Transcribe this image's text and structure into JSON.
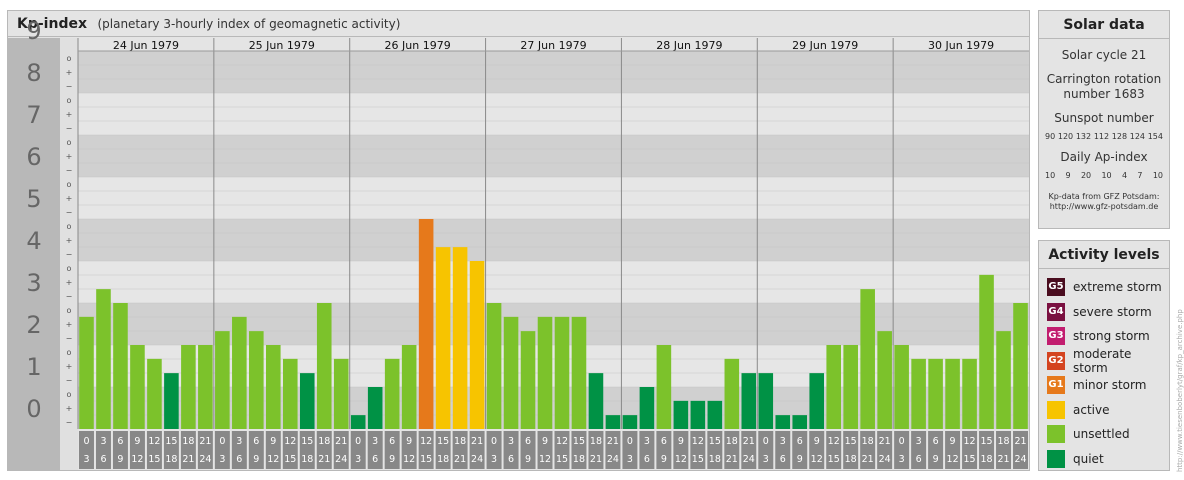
{
  "chart_header": {
    "title": "Kp-index",
    "subtitle": "(planetary 3-hourly index of geomagnetic activity)"
  },
  "chart_data": {
    "type": "bar",
    "title": "Kp-index",
    "subtitle": "(planetary 3-hourly index of geomagnetic activity)",
    "ylim": [
      0,
      9
    ],
    "y_ticks": [
      "0",
      "1",
      "2",
      "3",
      "4",
      "5",
      "6",
      "7",
      "8",
      "9"
    ],
    "minor_marks": [
      "o",
      "+",
      "−"
    ],
    "days": [
      "24 Jun 1979",
      "25 Jun 1979",
      "26 Jun 1979",
      "27 Jun 1979",
      "28 Jun 1979",
      "29 Jun 1979",
      "30 Jun 1979"
    ],
    "interval_labels": [
      [
        "0",
        "3"
      ],
      [
        "3",
        "6"
      ],
      [
        "6",
        "9"
      ],
      [
        "9",
        "12"
      ],
      [
        "12",
        "15"
      ],
      [
        "15",
        "18"
      ],
      [
        "18",
        "21"
      ],
      [
        "21",
        "24"
      ]
    ],
    "values": [
      2.67,
      3.33,
      3.0,
      2.0,
      1.67,
      1.33,
      2.0,
      2.0,
      2.33,
      2.67,
      2.33,
      2.0,
      1.67,
      1.33,
      3.0,
      1.67,
      0.33,
      1.0,
      1.67,
      2.0,
      5.0,
      4.33,
      4.33,
      4.0,
      3.0,
      2.67,
      2.33,
      2.67,
      2.67,
      2.67,
      1.33,
      0.33,
      0.33,
      1.0,
      2.0,
      0.67,
      0.67,
      0.67,
      1.67,
      1.33,
      1.33,
      0.33,
      0.33,
      1.33,
      2.0,
      2.0,
      3.33,
      2.33,
      2.0,
      1.67,
      1.67,
      1.67,
      1.67,
      3.67,
      2.33,
      3.0
    ],
    "grid": true,
    "colors": {
      "quiet": "#009245",
      "unsettled": "#7cc22b",
      "active": "#f7c400",
      "minor_storm": "#e6791b",
      "moderate_storm": "#d44420",
      "strong_storm": "#c21d6f",
      "severe_storm": "#7a1040",
      "extreme_storm": "#4a0d1f",
      "band_dark": "#d0d0d0",
      "band_light": "#e6e6e6",
      "axis_bg": "#b8b8b8",
      "axis_text": "#666666",
      "interval_bg": "#888888"
    }
  },
  "solar_data": {
    "title": "Solar data",
    "cycle": "Solar cycle 21",
    "carrington_line1": "Carrington rotation",
    "carrington_line2": "number 1683",
    "sunspot_label": "Sunspot number",
    "sunspot_numbers": [
      "90",
      "120",
      "132",
      "112",
      "128",
      "124",
      "154"
    ],
    "ap_label": "Daily Ap-index",
    "ap_values": [
      "10",
      "9",
      "20",
      "10",
      "4",
      "7",
      "10"
    ],
    "source_line1": "Kp-data from GFZ Potsdam:",
    "source_line2": "http://www.gfz-potsdam.de"
  },
  "activity_levels": {
    "title": "Activity levels",
    "items": [
      {
        "badge": "G5",
        "label": "extreme storm",
        "color": "#4a0d1f"
      },
      {
        "badge": "G4",
        "label": "severe storm",
        "color": "#7a1040"
      },
      {
        "badge": "G3",
        "label": "strong storm",
        "color": "#c21d6f"
      },
      {
        "badge": "G2",
        "label": "moderate storm",
        "color": "#d44420"
      },
      {
        "badge": "G1",
        "label": "minor storm",
        "color": "#e6791b"
      },
      {
        "badge": "",
        "label": "active",
        "color": "#f7c400"
      },
      {
        "badge": "",
        "label": "unsettled",
        "color": "#7cc22b"
      },
      {
        "badge": "",
        "label": "quiet",
        "color": "#009245"
      }
    ]
  },
  "watermark": "http://www.tiesenboberlyt/graf/kp_archive.php"
}
